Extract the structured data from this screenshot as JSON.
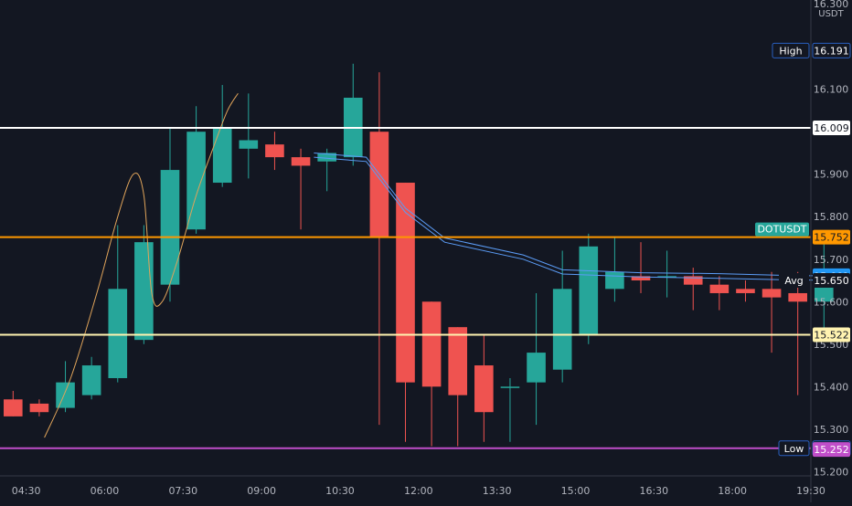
{
  "chart_data": {
    "type": "candlestick",
    "currency_label": "USDT",
    "y_top_label": "16.300",
    "ylim": [
      15.19,
      16.31
    ],
    "xlim": [
      -0.5,
      30.5
    ],
    "y_ticks": [
      "16.100",
      "16.000",
      "15.900",
      "15.800",
      "15.700",
      "15.600",
      "15.500",
      "15.400",
      "15.300",
      "15.200"
    ],
    "x_ticks": [
      {
        "label": "04:30",
        "index": 0.5
      },
      {
        "label": "06:00",
        "index": 3.5
      },
      {
        "label": "07:30",
        "index": 6.5
      },
      {
        "label": "09:00",
        "index": 9.5
      },
      {
        "label": "10:30",
        "index": 12.5
      },
      {
        "label": "12:00",
        "index": 15.5
      },
      {
        "label": "13:30",
        "index": 18.5
      },
      {
        "label": "15:00",
        "index": 21.5
      },
      {
        "label": "16:30",
        "index": 24.5
      },
      {
        "label": "18:00",
        "index": 27.5
      },
      {
        "label": "19:30",
        "index": 30.5
      }
    ],
    "candles": [
      {
        "o": 15.37,
        "h": 15.39,
        "l": 15.33,
        "c": 15.33
      },
      {
        "o": 15.36,
        "h": 15.37,
        "l": 15.33,
        "c": 15.34
      },
      {
        "o": 15.35,
        "h": 15.46,
        "l": 15.34,
        "c": 15.41
      },
      {
        "o": 15.38,
        "h": 15.47,
        "l": 15.37,
        "c": 15.45
      },
      {
        "o": 15.42,
        "h": 15.78,
        "l": 15.41,
        "c": 15.63
      },
      {
        "o": 15.51,
        "h": 15.78,
        "l": 15.5,
        "c": 15.74
      },
      {
        "o": 15.64,
        "h": 16.01,
        "l": 15.6,
        "c": 15.91
      },
      {
        "o": 15.77,
        "h": 16.06,
        "l": 15.76,
        "c": 16.0
      },
      {
        "o": 15.88,
        "h": 16.11,
        "l": 15.87,
        "c": 16.01
      },
      {
        "o": 15.96,
        "h": 16.09,
        "l": 15.89,
        "c": 15.98
      },
      {
        "o": 15.97,
        "h": 16.0,
        "l": 15.91,
        "c": 15.94
      },
      {
        "o": 15.94,
        "h": 15.96,
        "l": 15.77,
        "c": 15.92
      },
      {
        "o": 15.93,
        "h": 15.96,
        "l": 15.86,
        "c": 15.95
      },
      {
        "o": 15.94,
        "h": 16.16,
        "l": 15.92,
        "c": 16.08
      },
      {
        "o": 16.0,
        "h": 16.14,
        "l": 15.31,
        "c": 15.75
      },
      {
        "o": 15.88,
        "h": 15.88,
        "l": 15.27,
        "c": 15.41
      },
      {
        "o": 15.6,
        "h": 15.6,
        "l": 15.26,
        "c": 15.4
      },
      {
        "o": 15.54,
        "h": 15.54,
        "l": 15.26,
        "c": 15.38
      },
      {
        "o": 15.45,
        "h": 15.52,
        "l": 15.27,
        "c": 15.34
      },
      {
        "o": 15.4,
        "h": 15.42,
        "l": 15.27,
        "c": 15.4
      },
      {
        "o": 15.41,
        "h": 15.62,
        "l": 15.31,
        "c": 15.48
      },
      {
        "o": 15.44,
        "h": 15.72,
        "l": 15.41,
        "c": 15.63
      },
      {
        "o": 15.52,
        "h": 15.76,
        "l": 15.5,
        "c": 15.73
      },
      {
        "o": 15.63,
        "h": 15.75,
        "l": 15.6,
        "c": 15.67
      },
      {
        "o": 15.66,
        "h": 15.74,
        "l": 15.62,
        "c": 15.65
      },
      {
        "o": 15.66,
        "h": 15.72,
        "l": 15.61,
        "c": 15.66
      },
      {
        "o": 15.66,
        "h": 15.68,
        "l": 15.58,
        "c": 15.64
      },
      {
        "o": 15.64,
        "h": 15.66,
        "l": 15.58,
        "c": 15.62
      },
      {
        "o": 15.63,
        "h": 15.65,
        "l": 15.6,
        "c": 15.62
      },
      {
        "o": 15.63,
        "h": 15.67,
        "l": 15.48,
        "c": 15.61
      },
      {
        "o": 15.62,
        "h": 15.67,
        "l": 15.38,
        "c": 15.6
      },
      {
        "o": 15.6,
        "h": 15.76,
        "l": 15.51,
        "c": 15.66
      }
    ],
    "ma_lines": [
      {
        "color": "#5b9cf6",
        "points": [
          [
            11.5,
            15.95
          ],
          [
            13.5,
            15.94
          ],
          [
            15,
            15.82
          ],
          [
            16.5,
            15.75
          ],
          [
            19.5,
            15.71
          ],
          [
            21,
            15.675
          ],
          [
            24,
            15.668
          ],
          [
            27,
            15.666
          ],
          [
            30,
            15.661
          ],
          [
            31,
            15.661
          ]
        ]
      },
      {
        "color": "#5b9cf6",
        "points": [
          [
            11.5,
            15.94
          ],
          [
            13.5,
            15.93
          ],
          [
            15,
            15.81
          ],
          [
            16.5,
            15.74
          ],
          [
            19.5,
            15.7
          ],
          [
            21,
            15.665
          ],
          [
            24,
            15.658
          ],
          [
            27,
            15.655
          ],
          [
            30,
            15.651
          ],
          [
            31,
            15.651
          ]
        ]
      }
    ],
    "trend_curve": {
      "color": "#e0a45a",
      "points": [
        [
          1.2,
          15.28
        ],
        [
          2.2,
          15.42
        ],
        [
          3.2,
          15.62
        ],
        [
          4.0,
          15.8
        ],
        [
          4.6,
          15.9
        ],
        [
          5.0,
          15.85
        ],
        [
          5.3,
          15.62
        ],
        [
          5.7,
          15.6
        ],
        [
          6.3,
          15.7
        ],
        [
          7.0,
          15.85
        ],
        [
          7.7,
          15.97
        ],
        [
          8.2,
          16.05
        ],
        [
          8.6,
          16.09
        ]
      ]
    },
    "levels": [
      {
        "value": 16.009,
        "label": "16.009",
        "line_color": "#ffffff",
        "tag_bg": "#ffffff",
        "tag_fg": "#131722"
      },
      {
        "value": 15.752,
        "label": "15.752",
        "line_color": "#ff9800",
        "tag_bg": "#ff9800",
        "tag_fg": "#131722"
      },
      {
        "value": 15.522,
        "label": "15.522",
        "line_color": "#fff3b0",
        "tag_bg": "#fff3b0",
        "tag_fg": "#131722"
      },
      {
        "value": 15.255,
        "label": "15.255",
        "line_color": "#c04ec9",
        "tag_bg": "#131722",
        "tag_fg": "#ffffff",
        "tag_border": "#2a5fbf"
      }
    ],
    "axis_tags": [
      {
        "value": 16.191,
        "label": "16.191",
        "bg": "#131722",
        "fg": "#ffffff",
        "border": "#2a5fbf",
        "side_label": "High"
      },
      {
        "value": 15.661,
        "label": "15.661",
        "bg": "#2196f3",
        "fg": "#ffffff"
      },
      {
        "value": 15.651,
        "label": "15.651",
        "bg": "#2196f3",
        "fg": "#ffffff"
      },
      {
        "value": 15.65,
        "label": "15.650",
        "bg": "#131722",
        "fg": "#ffffff",
        "side_label": "Avg"
      },
      {
        "value": 15.252,
        "label": "15.252",
        "bg": "#c04ec9",
        "fg": "#ffffff"
      }
    ],
    "symbol_tag": {
      "value": 15.752,
      "label": "DOTUSDT",
      "price": "15.752",
      "bg": "#26a69a",
      "price_bg": "#ff9800"
    },
    "low_tag": {
      "value": 15.255,
      "label": "Low"
    },
    "colors": {
      "up": "#26a69a",
      "down": "#ef5350",
      "background": "#131722",
      "axis_text": "#b2b5be"
    }
  }
}
